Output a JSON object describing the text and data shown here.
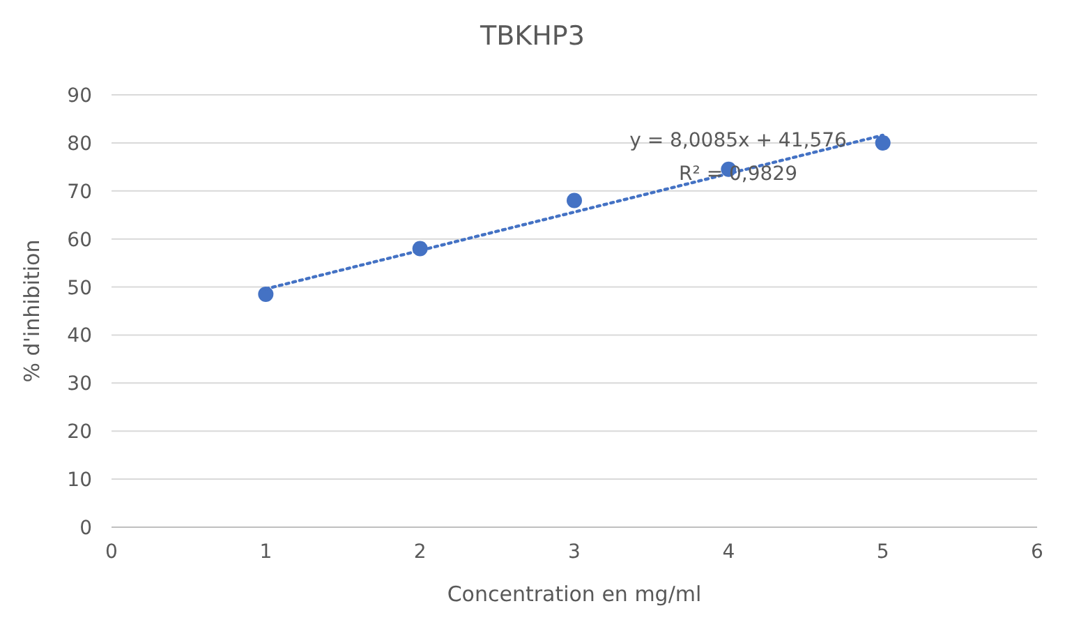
{
  "chart_data": {
    "type": "scatter",
    "title": "TBKHP3",
    "xlabel": "Concentration en mg/ml",
    "ylabel": "% d'inhibition",
    "xlim": [
      0,
      6
    ],
    "xticks": [
      0,
      1,
      2,
      3,
      4,
      5,
      6
    ],
    "ylim": [
      0,
      90
    ],
    "yticks": [
      0,
      10,
      20,
      30,
      40,
      50,
      60,
      70,
      80,
      90
    ],
    "grid": "y",
    "series": [
      {
        "color": "#4472c4",
        "marker": "circle",
        "x": [
          1,
          2,
          3,
          4,
          5
        ],
        "values": [
          48.5,
          58,
          68,
          74.5,
          80
        ]
      },
      {
        "type": "line",
        "color": "#4472c4",
        "marker": "none",
        "line_style": "dotted",
        "x": [
          1,
          5
        ],
        "values": [
          49.6,
          81.6
        ]
      }
    ],
    "annotations": [
      "y = 8,0085x + 41,576",
      "R² = 0,9829"
    ]
  }
}
